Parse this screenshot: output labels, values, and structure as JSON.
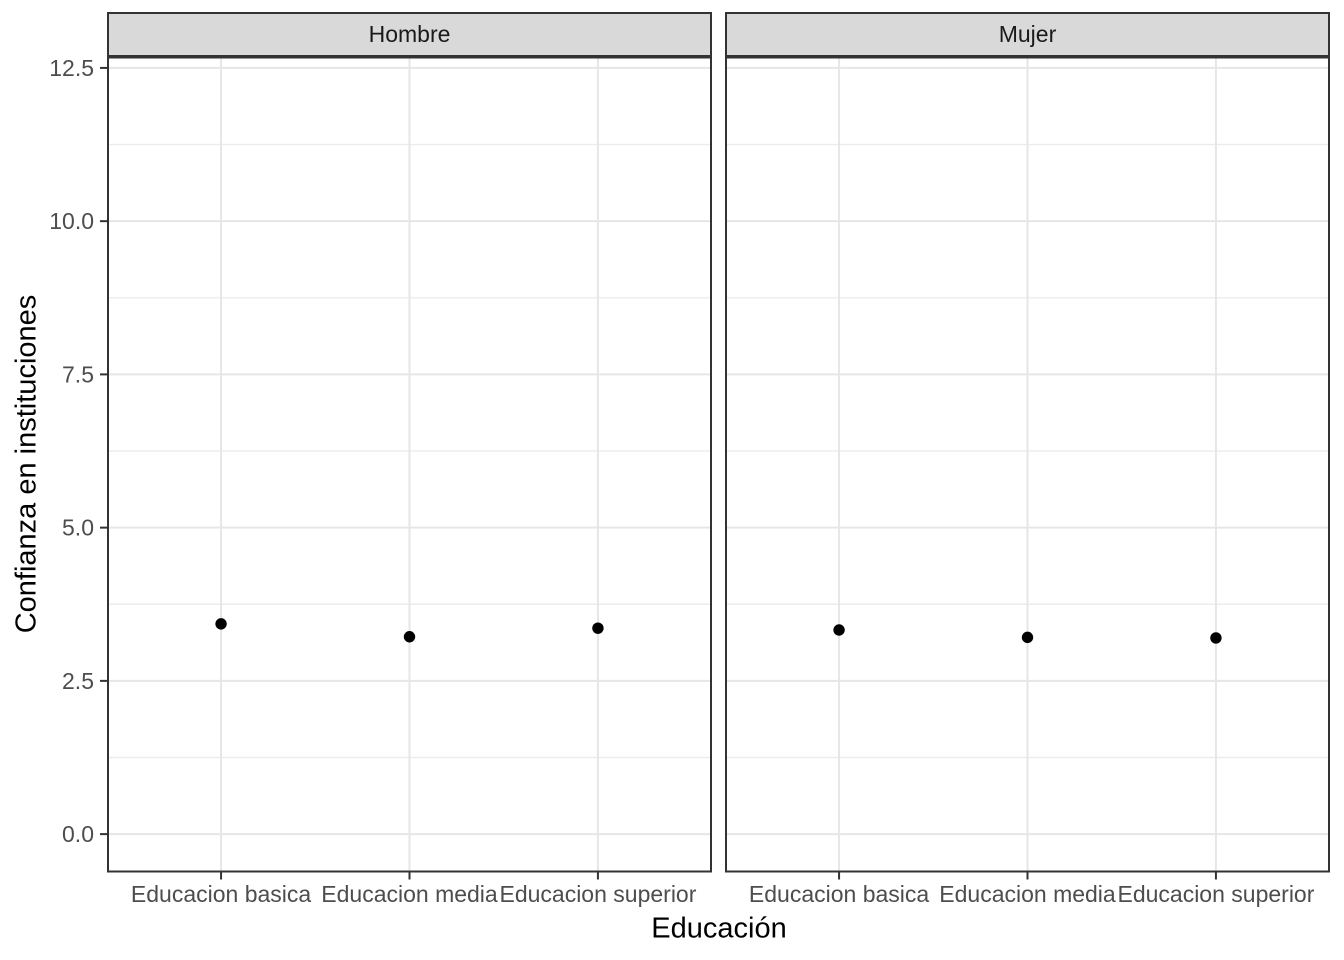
{
  "chart_data": {
    "type": "scatter",
    "xlabel": "Educación",
    "ylabel": "Confianza en instituciones",
    "categories": [
      "Educacion basica",
      "Educacion media",
      "Educacion superior"
    ],
    "facets": [
      {
        "label": "Hombre",
        "values": [
          3.43,
          3.22,
          3.36
        ]
      },
      {
        "label": "Mujer",
        "values": [
          3.33,
          3.21,
          3.2
        ]
      }
    ],
    "y_ticks": [
      {
        "value": 0,
        "label": "0.0"
      },
      {
        "value": 2.5,
        "label": "2.5"
      },
      {
        "value": 5,
        "label": "5.0"
      },
      {
        "value": 7.5,
        "label": "7.5"
      },
      {
        "value": 10,
        "label": "10.0"
      },
      {
        "value": 12.5,
        "label": "12.5"
      }
    ],
    "y_minor": [
      1.25,
      3.75,
      6.25,
      8.75,
      11.25
    ],
    "ylim": [
      -0.61,
      12.67
    ],
    "grid": "major+minor",
    "legend": "none",
    "point_color": "#000000"
  },
  "colors": {
    "background": "#ffffff",
    "panel_background": "#ffffff",
    "strip_background": "#d9d9d9",
    "panel_border": "#333333",
    "grid_major": "#e6e6e6",
    "grid_minor": "#ececec",
    "tick_mark": "#333333",
    "tick_label": "#4d4d4d",
    "axis_title": "#000000",
    "strip_text": "#1a1a1a"
  }
}
